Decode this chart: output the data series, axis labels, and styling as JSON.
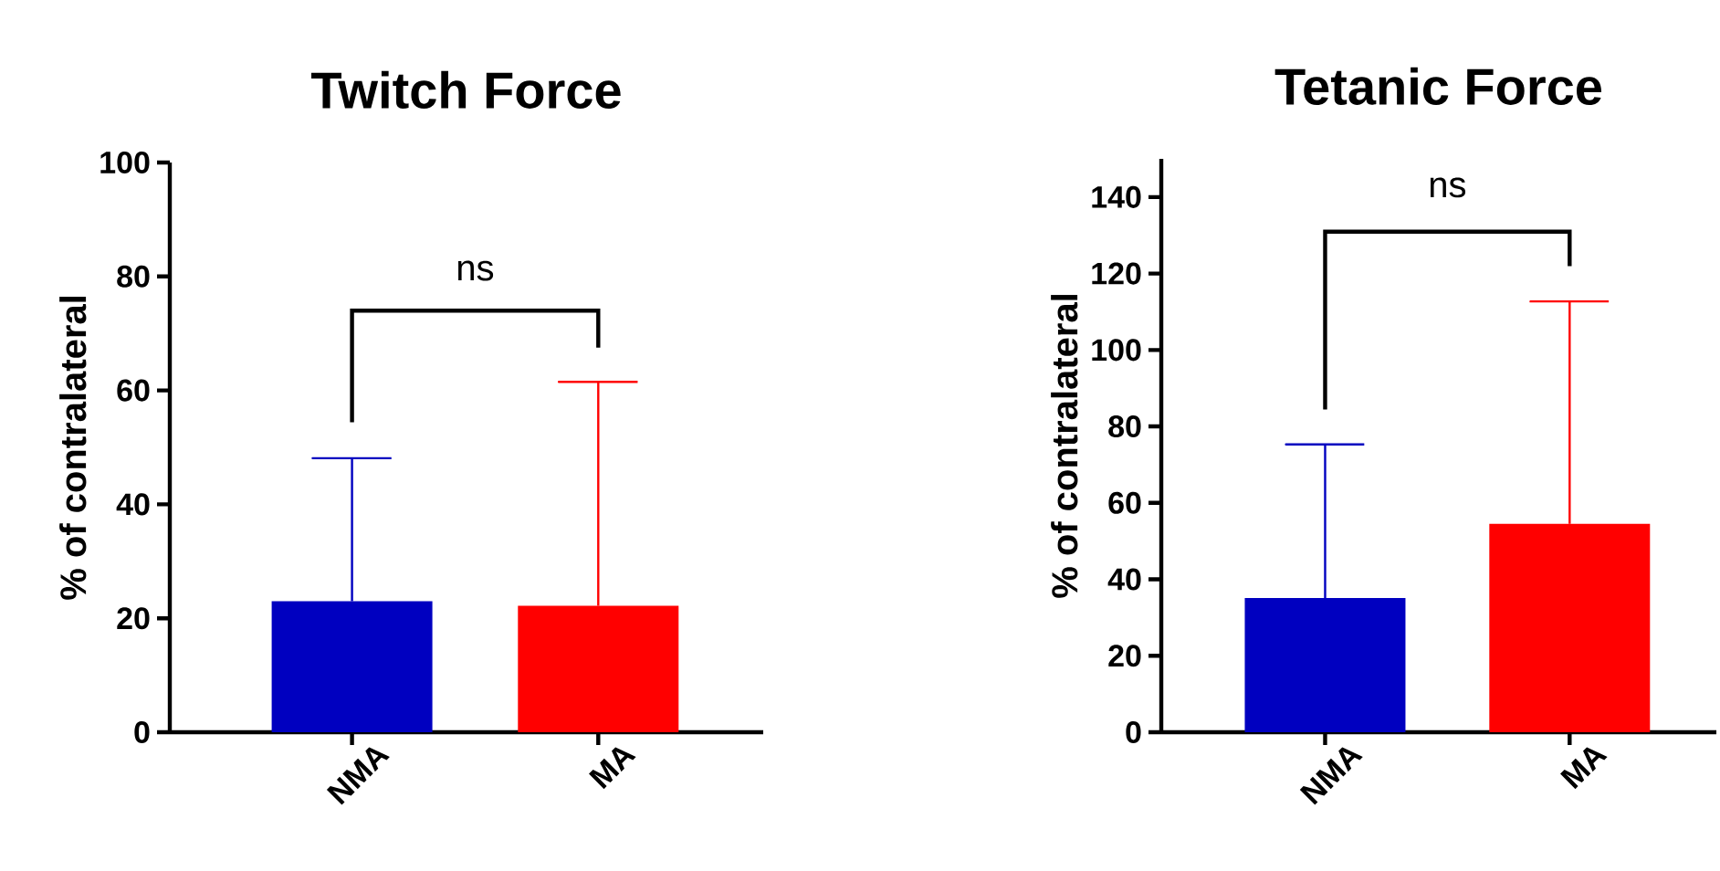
{
  "chart_data": [
    {
      "type": "bar",
      "title": "Twitch  Force",
      "ylabel": "% of contralateral",
      "categories": [
        "NMA",
        "MA"
      ],
      "values": [
        23.0,
        22.2
      ],
      "colors": [
        "#0000c0",
        "#ff0000"
      ],
      "errors": [
        [
          23.0,
          48.1
        ],
        [
          22.2,
          61.5
        ]
      ],
      "ylim": [
        0,
        100
      ],
      "yticks": [
        0,
        20,
        40,
        60,
        80,
        100
      ],
      "annotations": [
        "ns"
      ]
    },
    {
      "type": "bar",
      "title": "Tetanic Force",
      "ylabel": "% of contralateral",
      "categories": [
        "NMA",
        "MA"
      ],
      "values": [
        35.1,
        54.5
      ],
      "colors": [
        "#0000c0",
        "#ff0000"
      ],
      "errors": [
        [
          35.1,
          75.3
        ],
        [
          54.5,
          112.7
        ]
      ],
      "ylim": [
        0,
        150
      ],
      "yticks": [
        0,
        20,
        40,
        60,
        80,
        100,
        120,
        140
      ],
      "annotations": [
        "ns"
      ]
    }
  ]
}
